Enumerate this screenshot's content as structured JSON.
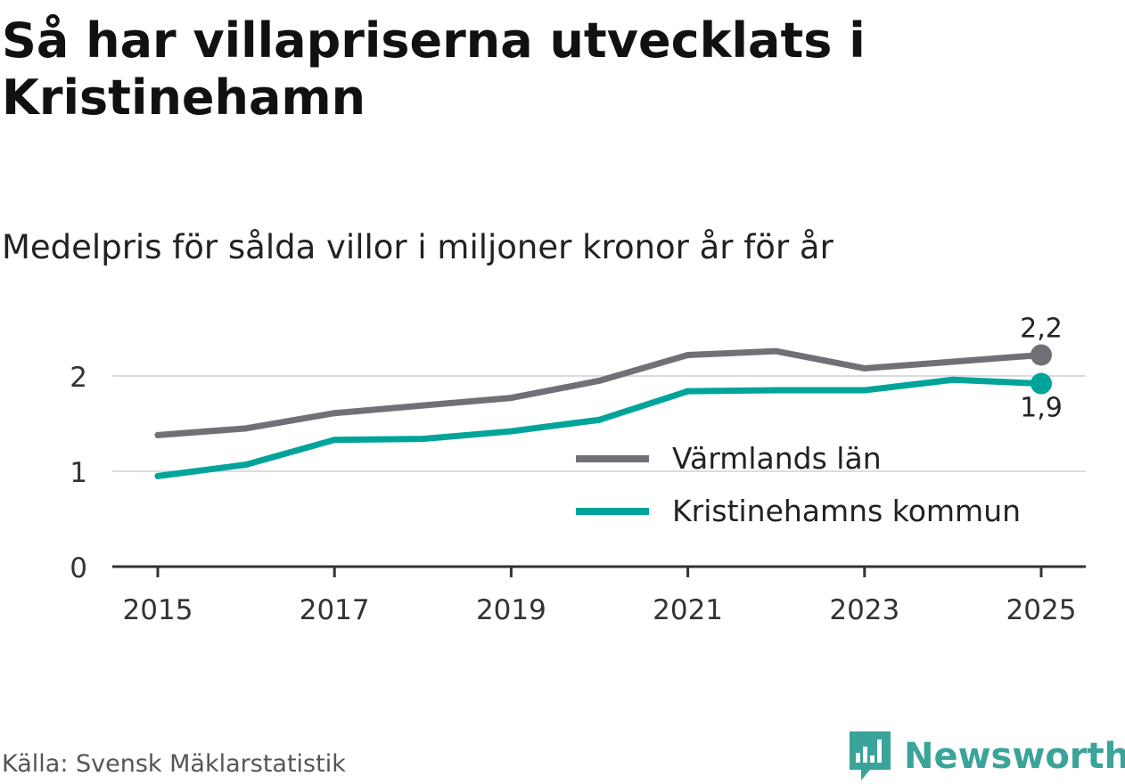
{
  "header": {
    "title": "Så har villapriserna utvecklats i Kristinehamn",
    "subtitle": "Medelpris för sålda villor i miljoner kronor år för år"
  },
  "footer": {
    "source": "Källa: Svensk Mäklarstatistik",
    "brand": "Newsworthy"
  },
  "colors": {
    "varmland": "#717077",
    "kristinehamn": "#00a49a",
    "grid": "#dcdcdc",
    "axis": "#333333",
    "brand": "#3aa39a"
  },
  "chart_data": {
    "type": "line",
    "title": "Så har villapriserna utvecklats i Kristinehamn",
    "subtitle": "Medelpris för sålda villor i miljoner kronor år för år",
    "xlabel": "",
    "ylabel": "",
    "x": [
      2015,
      2016,
      2017,
      2018,
      2019,
      2020,
      2021,
      2022,
      2023,
      2024,
      2025
    ],
    "x_ticks": [
      "2015",
      "2017",
      "2019",
      "2021",
      "2023",
      "2025"
    ],
    "y_ticks": [
      "0",
      "1",
      "2"
    ],
    "ylim": [
      0,
      2.2
    ],
    "xlim": [
      2014.5,
      2025.5
    ],
    "grid": true,
    "legend_position": "bottom-right",
    "series": [
      {
        "name": "Värmlands län",
        "color": "#717077",
        "values": [
          1.38,
          1.45,
          1.61,
          1.69,
          1.77,
          1.95,
          2.22,
          2.26,
          2.08,
          2.15,
          2.22
        ],
        "end_label": "2,2"
      },
      {
        "name": "Kristinehamns kommun",
        "color": "#00a49a",
        "values": [
          0.95,
          1.07,
          1.33,
          1.34,
          1.42,
          1.54,
          1.84,
          1.85,
          1.85,
          1.96,
          1.92
        ],
        "end_label": "1,9"
      }
    ]
  }
}
